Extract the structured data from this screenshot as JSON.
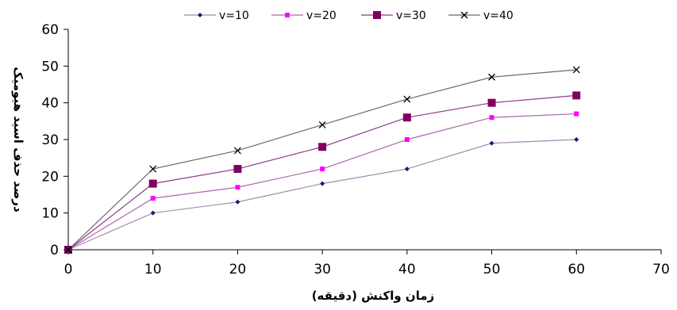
{
  "chart_data": {
    "type": "line",
    "title": "",
    "xlabel": "زمان واکنش (دقیقه)",
    "ylabel": "درصد حذف اسید هیومیک",
    "xlim": [
      0,
      70
    ],
    "ylim": [
      0,
      60
    ],
    "x_ticks": [
      0,
      10,
      20,
      30,
      40,
      50,
      60,
      70
    ],
    "y_ticks": [
      0,
      10,
      20,
      30,
      40,
      50,
      60
    ],
    "grid": false,
    "legend_position": "top",
    "x": [
      0,
      10,
      20,
      30,
      40,
      50,
      60
    ],
    "series": [
      {
        "name": "v=10",
        "values": [
          0,
          10,
          13,
          18,
          22,
          29,
          30
        ],
        "color": "#a78bb0",
        "marker": "diamond",
        "marker_color": "#1a1a6e"
      },
      {
        "name": "v=20",
        "values": [
          0,
          14,
          17,
          22,
          30,
          36,
          37
        ],
        "color": "#a66aa8",
        "marker": "square-small",
        "marker_color": "#ff00ff"
      },
      {
        "name": "v=30",
        "values": [
          0,
          18,
          22,
          28,
          36,
          40,
          42
        ],
        "color": "#8c3a8c",
        "marker": "square",
        "marker_color": "#800060"
      },
      {
        "name": "v=40",
        "values": [
          0,
          22,
          27,
          34,
          41,
          47,
          49
        ],
        "color": "#6b6b6b",
        "marker": "x",
        "marker_color": "#000000"
      }
    ]
  }
}
